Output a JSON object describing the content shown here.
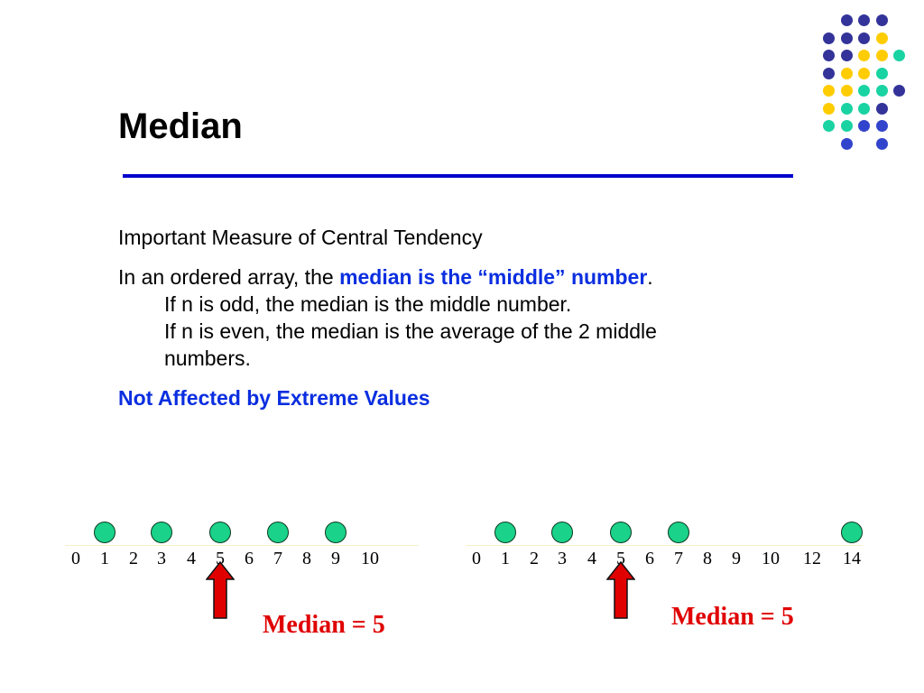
{
  "slide": {
    "title": "Median",
    "bullets": {
      "b1": "Important Measure of Central Tendency",
      "b2_pre": "In an ordered array, the ",
      "b2_emph": "median is the “middle” number",
      "b2_post": ".",
      "sub1": "If n is odd, the median is the middle number.",
      "sub2_line1": "If n is even, the median is the average of the 2 middle",
      "sub2_line2": "numbers.",
      "b3": "Not Affected by Extreme Values"
    },
    "colors": {
      "rule": "#0000cc",
      "emphasis": "#0a2ee0",
      "median_label": "#e00000",
      "ball": "#1ad28a",
      "arrow": "#e00000",
      "dot_purple": "#33339a",
      "dot_yellow": "#ffcc00",
      "dot_teal": "#19d3a2",
      "dot_blue": "#3344cc"
    }
  },
  "example_left": {
    "ticks": [
      "0",
      "1",
      "2",
      "3",
      "4",
      "5",
      "6",
      "7",
      "8",
      "9",
      "10"
    ],
    "data_values": [
      1,
      3,
      5,
      7,
      9
    ],
    "median_value": 5,
    "median_label": "Median = 5"
  },
  "example_right": {
    "ticks": [
      "0",
      "1",
      "2",
      "3",
      "4",
      "5",
      "6",
      "7",
      "8",
      "9",
      "10",
      "12",
      "14"
    ],
    "data_values": [
      1,
      3,
      5,
      7,
      14
    ],
    "median_value": 5,
    "median_label": "Median = 5"
  }
}
